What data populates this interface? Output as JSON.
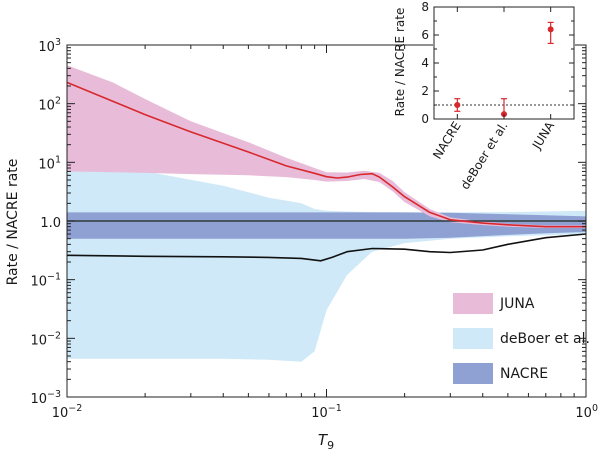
{
  "chart_data": [
    {
      "type": "area",
      "xlabel": "T",
      "xlabel_sub": "9",
      "ylabel": "Rate / NACRE rate",
      "xscale": "log",
      "yscale": "log",
      "xlim": [
        0.01,
        1
      ],
      "ylim": [
        0.001,
        1000
      ],
      "x_ticks": [
        {
          "value": 0.01,
          "base": "10",
          "exp": "−2"
        },
        {
          "value": 0.1,
          "base": "10",
          "exp": "−1"
        },
        {
          "value": 1,
          "base": "10",
          "exp": "0"
        }
      ],
      "y_ticks": [
        {
          "value": 1000,
          "base": "10",
          "exp": "3"
        },
        {
          "value": 100,
          "base": "10",
          "exp": "2"
        },
        {
          "value": 10,
          "base": "10",
          "exp": "1"
        },
        {
          "value": 1,
          "label": "1.0"
        },
        {
          "value": 0.1,
          "base": "10",
          "exp": "−1"
        },
        {
          "value": 0.01,
          "base": "10",
          "exp": "−2"
        },
        {
          "value": 0.001,
          "base": "10",
          "exp": "−3"
        }
      ],
      "legend_position": "bottom-right",
      "series": [
        {
          "name": "deBoer et al.",
          "kind": "band",
          "color": "#cfe9f8",
          "x": [
            0.01,
            0.02,
            0.04,
            0.06,
            0.08,
            0.09,
            0.1,
            0.12,
            0.15,
            0.2,
            0.3,
            0.5,
            0.7,
            1.0
          ],
          "lower": [
            0.0045,
            0.0045,
            0.0045,
            0.0043,
            0.004,
            0.006,
            0.03,
            0.12,
            0.3,
            0.42,
            0.5,
            0.55,
            0.57,
            0.6
          ],
          "upper": [
            13,
            7,
            4,
            2.5,
            2.0,
            1.6,
            1.5,
            1.45,
            1.42,
            1.4,
            1.4,
            1.42,
            1.45,
            1.5
          ]
        },
        {
          "name": "NACRE",
          "kind": "band",
          "color": "#8fa0d3",
          "x": [
            0.01,
            0.03,
            0.1,
            0.2,
            0.3,
            0.5,
            0.7,
            1.0
          ],
          "lower": [
            0.5,
            0.5,
            0.5,
            0.5,
            0.52,
            0.58,
            0.62,
            0.65
          ],
          "upper": [
            1.4,
            1.4,
            1.4,
            1.4,
            1.38,
            1.3,
            1.25,
            1.2
          ]
        },
        {
          "name": "JUNA",
          "kind": "band",
          "color": "#e8bcd9",
          "x": [
            0.01,
            0.015,
            0.02,
            0.03,
            0.05,
            0.07,
            0.09,
            0.1,
            0.12,
            0.14,
            0.16,
            0.18,
            0.2,
            0.25,
            0.3,
            0.4,
            0.5,
            0.7,
            1.0
          ],
          "lower": [
            7,
            6.8,
            6.6,
            6.3,
            6.0,
            5.6,
            5.0,
            4.7,
            4.8,
            5.2,
            4.6,
            3.2,
            2.1,
            1.2,
            0.95,
            0.85,
            0.8,
            0.76,
            0.76
          ],
          "upper": [
            450,
            230,
            120,
            50,
            22,
            12,
            8,
            6.8,
            6.7,
            7.2,
            6.6,
            4.8,
            3.1,
            1.6,
            1.15,
            0.98,
            0.9,
            0.84,
            0.84
          ]
        },
        {
          "name": "NACRE reference",
          "kind": "line",
          "color": "#2f3a3a",
          "x": [
            0.01,
            1
          ],
          "y": [
            1,
            1
          ]
        },
        {
          "name": "deBoer et al. central",
          "kind": "line",
          "color": "#111111",
          "x": [
            0.01,
            0.02,
            0.04,
            0.06,
            0.08,
            0.095,
            0.105,
            0.12,
            0.15,
            0.2,
            0.25,
            0.3,
            0.4,
            0.5,
            0.7,
            1.0
          ],
          "y": [
            0.26,
            0.25,
            0.245,
            0.24,
            0.23,
            0.21,
            0.24,
            0.3,
            0.34,
            0.33,
            0.3,
            0.29,
            0.32,
            0.4,
            0.52,
            0.6
          ]
        },
        {
          "name": "JUNA central",
          "kind": "line",
          "color": "#d8282e",
          "x": [
            0.01,
            0.015,
            0.02,
            0.03,
            0.05,
            0.07,
            0.09,
            0.1,
            0.11,
            0.12,
            0.135,
            0.15,
            0.16,
            0.18,
            0.2,
            0.25,
            0.3,
            0.4,
            0.5,
            0.7,
            1.0
          ],
          "y": [
            230,
            110,
            65,
            33,
            15,
            8.7,
            6.5,
            5.7,
            5.4,
            5.6,
            6.2,
            6.4,
            5.6,
            3.8,
            2.6,
            1.4,
            1.05,
            0.92,
            0.86,
            0.8,
            0.8
          ]
        }
      ],
      "legend": [
        {
          "label": "JUNA",
          "color": "#e8bcd9"
        },
        {
          "label": "deBoer et al.",
          "color": "#cfe9f8"
        },
        {
          "label": "NACRE",
          "color": "#8fa0d3"
        }
      ]
    },
    {
      "type": "scatter",
      "ylabel": "Rate / NACRE rate",
      "ylim": [
        0,
        8
      ],
      "y_ticks": [
        0,
        2,
        4,
        6,
        8
      ],
      "reference_line": 1,
      "categories": [
        "NACRE",
        "deBoer et al.",
        "JUNA"
      ],
      "values": [
        1.0,
        0.35,
        6.4
      ],
      "error_low": [
        0.55,
        0.35,
        5.4
      ],
      "error_high": [
        1.45,
        1.45,
        6.9
      ],
      "marker_color": "#d8282e"
    }
  ]
}
